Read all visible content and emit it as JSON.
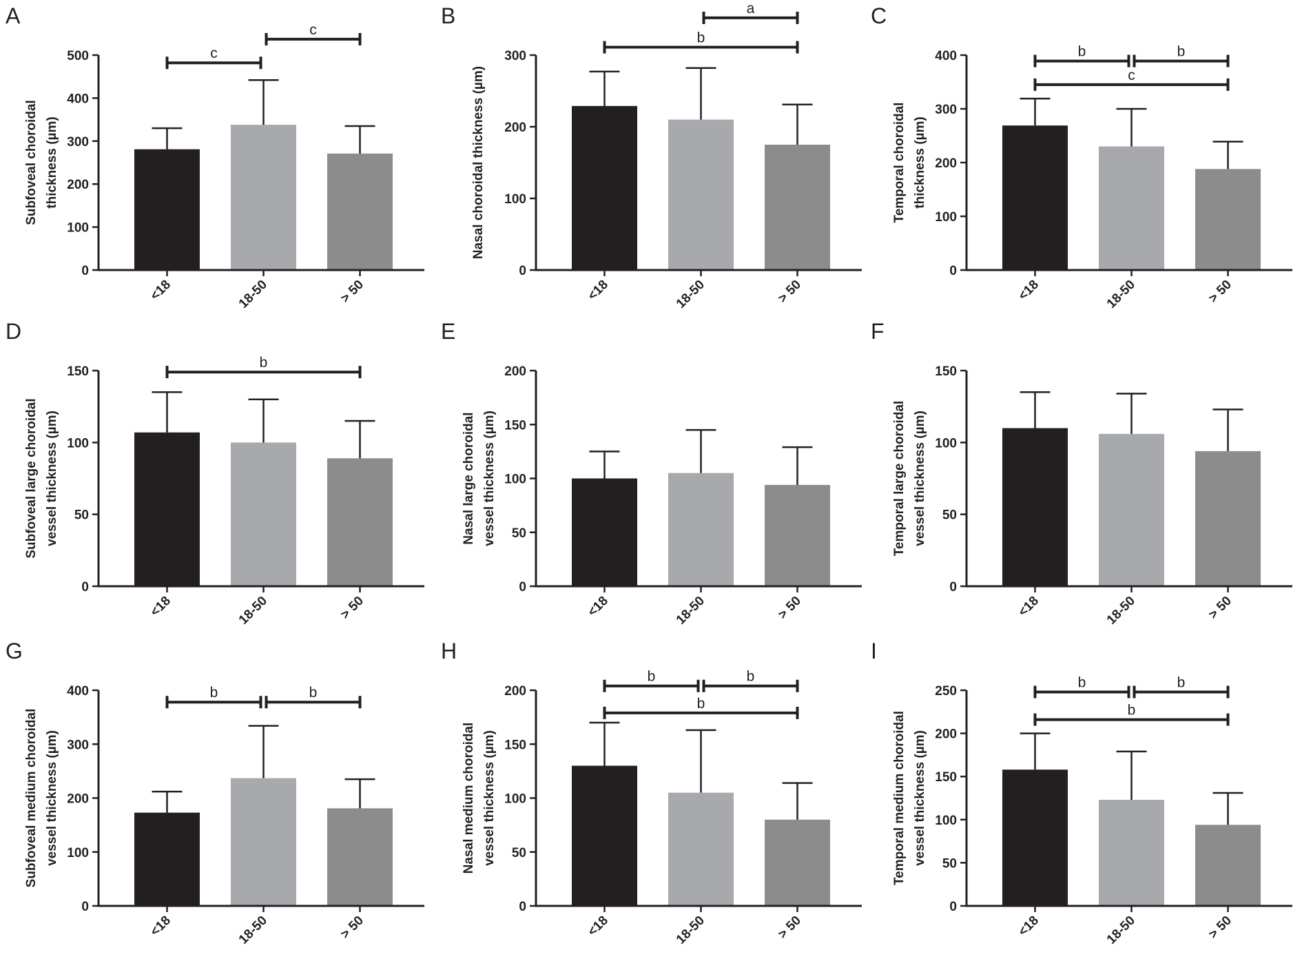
{
  "figure": {
    "colors": {
      "axis": "#231f20",
      "bar_lt18": "#231f20",
      "bar_18_50": "#a7a9ac",
      "bar_gt50": "#8c8c8c"
    }
  },
  "chart_data": [
    {
      "panel": "A",
      "type": "bar",
      "categories": [
        "<18",
        "18-50",
        "> 50"
      ],
      "values": [
        281,
        338,
        271
      ],
      "errors": [
        49,
        104,
        64
      ],
      "ylabel": [
        "Subfoveal choroidal",
        "thickness (µm)"
      ],
      "ylim": [
        0,
        500
      ],
      "yticks": [
        0,
        100,
        200,
        300,
        400,
        500
      ],
      "significance": [
        {
          "from": 0,
          "to": 1,
          "label": "c",
          "y": 482
        },
        {
          "from": 1,
          "to": 2,
          "label": "c",
          "y": 537
        }
      ]
    },
    {
      "panel": "B",
      "type": "bar",
      "categories": [
        "<18",
        "18-50",
        "> 50"
      ],
      "values": [
        229,
        210,
        175
      ],
      "errors": [
        48,
        72,
        56
      ],
      "ylabel": [
        "Nasal choroidal thickness (µm)"
      ],
      "ylim": [
        0,
        300
      ],
      "yticks": [
        0,
        100,
        200,
        300
      ],
      "significance": [
        {
          "from": 1,
          "to": 2,
          "label": "a",
          "y": 352
        },
        {
          "from": 0,
          "to": 2,
          "label": "b",
          "y": 311
        }
      ]
    },
    {
      "panel": "C",
      "type": "bar",
      "categories": [
        "<18",
        "18-50",
        "> 50"
      ],
      "values": [
        269,
        230,
        188
      ],
      "errors": [
        50,
        70,
        51
      ],
      "ylabel": [
        "Temporal choroidal",
        "thickness (µm)"
      ],
      "ylim": [
        0,
        400
      ],
      "yticks": [
        0,
        100,
        200,
        300,
        400
      ],
      "significance": [
        {
          "from": 0,
          "to": 1,
          "label": "b",
          "y": 389
        },
        {
          "from": 1,
          "to": 2,
          "label": "b",
          "y": 389
        },
        {
          "from": 0,
          "to": 2,
          "label": "c",
          "y": 345
        }
      ]
    },
    {
      "panel": "D",
      "type": "bar",
      "categories": [
        "<18",
        "18-50",
        "> 50"
      ],
      "values": [
        107,
        100,
        89
      ],
      "errors": [
        28,
        30,
        26
      ],
      "ylabel": [
        "Subfoveal large choroidal",
        "vessel thickness (µm)"
      ],
      "ylim": [
        0,
        150
      ],
      "yticks": [
        0,
        50,
        100,
        150
      ],
      "significance": [
        {
          "from": 0,
          "to": 2,
          "label": "b",
          "y": 149
        }
      ]
    },
    {
      "panel": "E",
      "type": "bar",
      "categories": [
        "<18",
        "18-50",
        "> 50"
      ],
      "values": [
        100,
        105,
        94
      ],
      "errors": [
        25,
        40,
        35
      ],
      "ylabel": [
        "Nasal large choroidal",
        "vessel thickness (µm)"
      ],
      "ylim": [
        0,
        200
      ],
      "yticks": [
        0,
        50,
        100,
        150,
        200
      ],
      "significance": []
    },
    {
      "panel": "F",
      "type": "bar",
      "categories": [
        "<18",
        "18-50",
        "> 50"
      ],
      "values": [
        110,
        106,
        94
      ],
      "errors": [
        25,
        28,
        29
      ],
      "ylabel": [
        "Temporal large choroidal",
        "vessel thickness (µm)"
      ],
      "ylim": [
        0,
        150
      ],
      "yticks": [
        0,
        50,
        100,
        150
      ],
      "significance": []
    },
    {
      "panel": "G",
      "type": "bar",
      "categories": [
        "<18",
        "18-50",
        "> 50"
      ],
      "values": [
        173,
        237,
        181
      ],
      "errors": [
        39,
        97,
        54
      ],
      "ylabel": [
        "Subfoveal medium  choroidal",
        "vessel thickness (µm)"
      ],
      "ylim": [
        0,
        400
      ],
      "yticks": [
        0,
        100,
        200,
        300,
        400
      ],
      "significance": [
        {
          "from": 0,
          "to": 1,
          "label": "b",
          "y": 378
        },
        {
          "from": 1,
          "to": 2,
          "label": "b",
          "y": 378
        }
      ]
    },
    {
      "panel": "H",
      "type": "bar",
      "categories": [
        "<18",
        "18-50",
        "> 50"
      ],
      "values": [
        130,
        105,
        80
      ],
      "errors": [
        40,
        58,
        34
      ],
      "ylabel": [
        "Nasal medium  choroidal",
        "vessel thickness (µm)"
      ],
      "ylim": [
        0,
        200
      ],
      "yticks": [
        0,
        50,
        100,
        150,
        200
      ],
      "significance": [
        {
          "from": 0,
          "to": 1,
          "label": "b",
          "y": 204
        },
        {
          "from": 1,
          "to": 2,
          "label": "b",
          "y": 204
        },
        {
          "from": 0,
          "to": 2,
          "label": "b",
          "y": 179
        }
      ]
    },
    {
      "panel": "I",
      "type": "bar",
      "categories": [
        "<18",
        "18-50",
        "> 50"
      ],
      "values": [
        158,
        123,
        94
      ],
      "errors": [
        42,
        56,
        37
      ],
      "ylabel": [
        "Temporal medium choroidal",
        "vessel thickness (µm)"
      ],
      "ylim": [
        0,
        250
      ],
      "yticks": [
        0,
        50,
        100,
        150,
        200,
        250
      ],
      "significance": [
        {
          "from": 0,
          "to": 1,
          "label": "b",
          "y": 248
        },
        {
          "from": 1,
          "to": 2,
          "label": "b",
          "y": 248
        },
        {
          "from": 0,
          "to": 2,
          "label": "b",
          "y": 216
        }
      ]
    }
  ]
}
